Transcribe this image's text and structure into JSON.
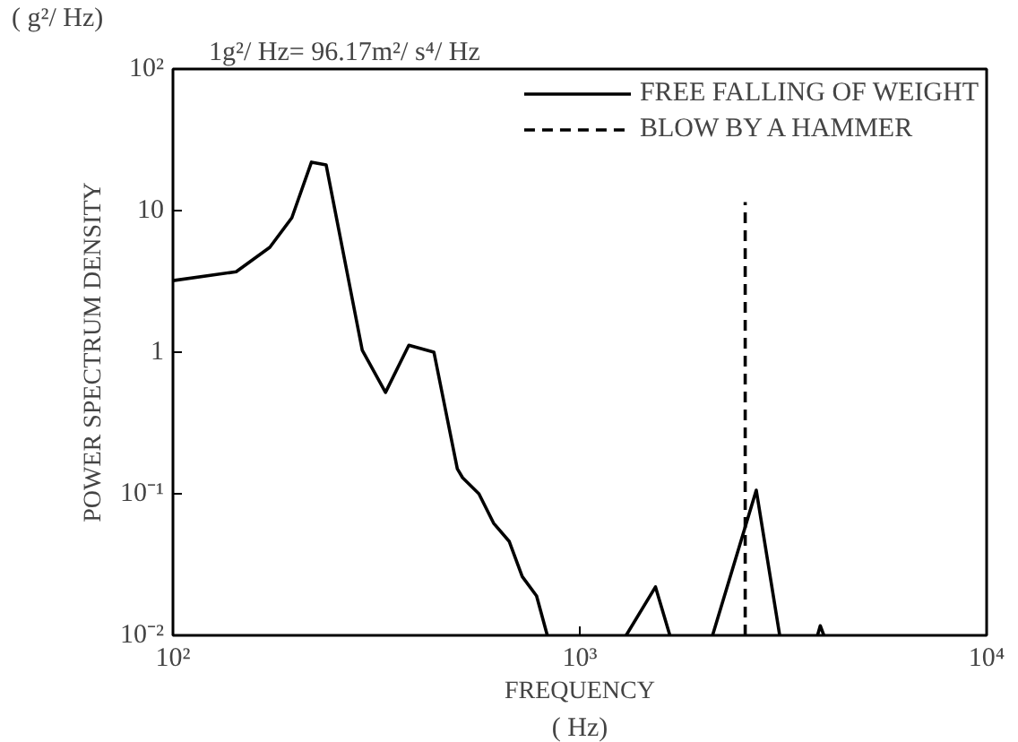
{
  "chart_data": {
    "type": "line",
    "title": "1g²/ Hz= 96.17m²/ s⁴/ Hz",
    "xlabel": "FREQUENCY",
    "ylabel": "POWER SPECTRUM DENSITY",
    "annotations": [
      "( g²/ Hz)",
      "( Hz)"
    ],
    "log": "xy",
    "grid": false,
    "legend": "top right",
    "xlim": [
      100,
      10000
    ],
    "ylim": [
      0.01,
      100
    ],
    "xticks": [
      {
        "value": 100,
        "label": "10²"
      },
      {
        "value": 1000,
        "label": "10³"
      },
      {
        "value": 10000,
        "label": "10⁴"
      }
    ],
    "yticks": [
      {
        "value": 0.01,
        "label": "10⁻²"
      },
      {
        "value": 0.1,
        "label": "10⁻¹"
      },
      {
        "value": 1,
        "label": "1"
      },
      {
        "value": 10,
        "label": "10"
      },
      {
        "value": 100,
        "label": "10²"
      }
    ],
    "series": [
      {
        "name": "FREE FALLING OF WEIGHT",
        "color": "#000000",
        "line_style": "solid",
        "x": [
          100,
          143,
          173,
          196,
          219,
          238,
          292,
          333,
          380,
          438,
          500,
          515,
          565,
          614,
          671,
          722,
          783,
          832,
          1200,
          1300,
          1535,
          1665,
          1900,
          2120,
          2715,
          3100,
          3500,
          3840,
          3900,
          3980
        ],
        "values": [
          3.2,
          3.7,
          5.5,
          8.9,
          22,
          21,
          1.03,
          0.52,
          1.12,
          1.0,
          0.15,
          0.13,
          0.1,
          0.062,
          0.046,
          0.026,
          0.019,
          0.01,
          null,
          0.01,
          0.022,
          0.01,
          null,
          0.01,
          0.106,
          0.01,
          null,
          0.01,
          0.0117,
          0.01
        ]
      },
      {
        "name": "BLOW BY A HAMMER",
        "color": "#000000",
        "line_style": "dashed",
        "x": [
          2550,
          2550
        ],
        "values": [
          0.01,
          11.5
        ]
      }
    ]
  }
}
